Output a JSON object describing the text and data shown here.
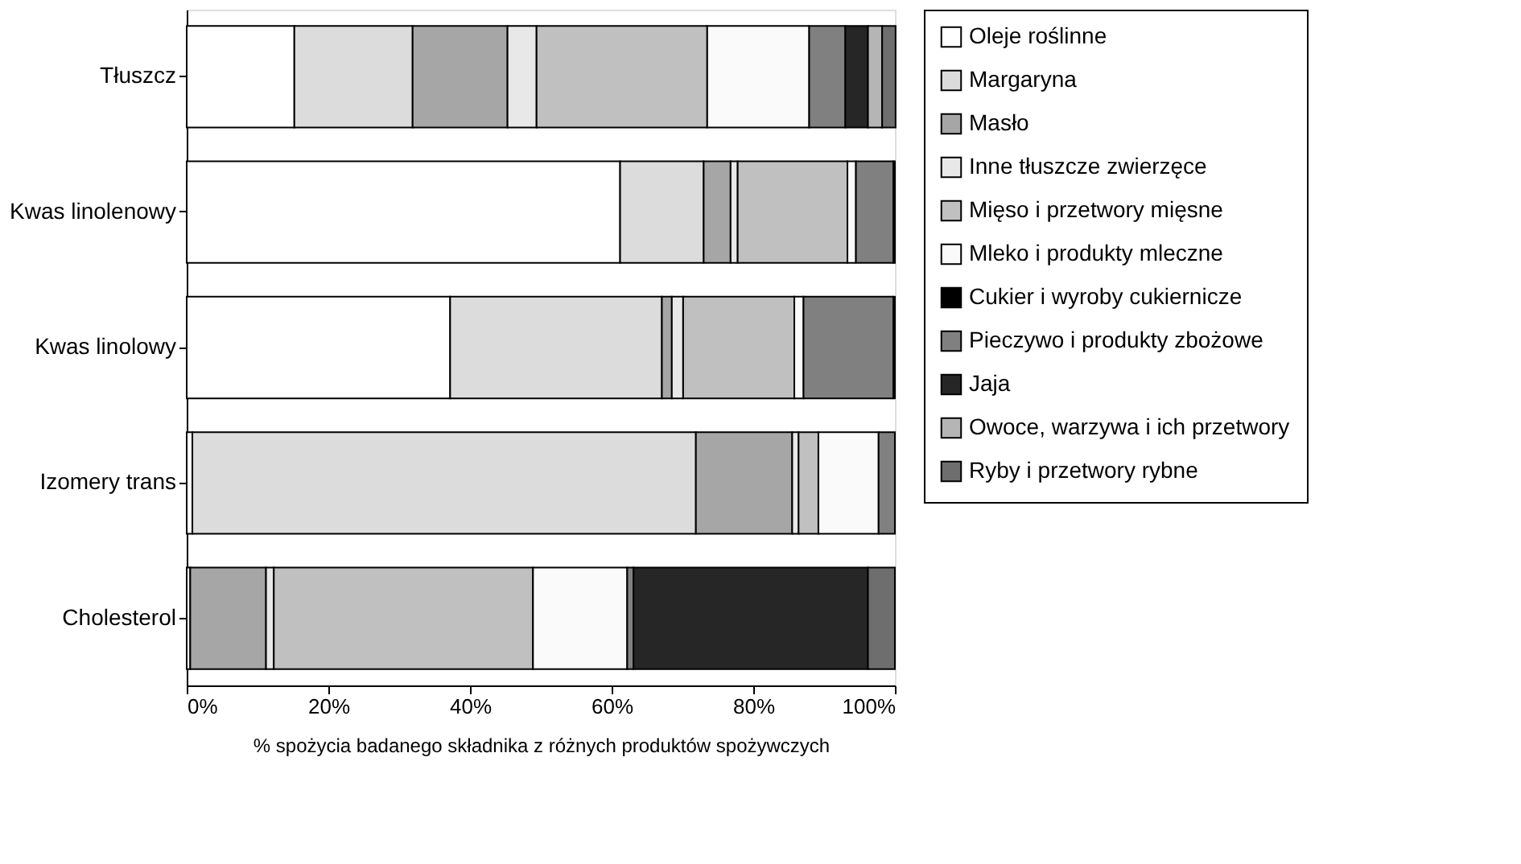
{
  "chart_data": {
    "type": "bar",
    "orientation": "horizontal",
    "stacked": true,
    "categories": [
      "Tłuszcz",
      "Kwas linolenowy",
      "Kwas linolowy",
      "Izomery trans",
      "Cholesterol"
    ],
    "xlabel": "% spożycia badanego składnika z różnych produktów  spożywczych",
    "xlim": [
      0,
      100
    ],
    "xticks": [
      {
        "value": 0,
        "label": "0%"
      },
      {
        "value": 20,
        "label": "20%"
      },
      {
        "value": 40,
        "label": "40%"
      },
      {
        "value": 60,
        "label": "60%"
      },
      {
        "value": 80,
        "label": "80%"
      },
      {
        "value": 100,
        "label": "100%"
      }
    ],
    "grid": false,
    "legend": "right",
    "series": [
      {
        "name": "Oleje roślinne",
        "color": "#ffffff",
        "values": [
          15.2,
          61.2,
          37.2,
          0.8,
          0.5
        ]
      },
      {
        "name": "Margaryna",
        "color": "#dcdcdc",
        "values": [
          16.7,
          11.8,
          29.9,
          71.1,
          null
        ]
      },
      {
        "name": "Masło",
        "color": "#a6a6a6",
        "values": [
          13.4,
          3.8,
          1.4,
          13.6,
          10.7
        ]
      },
      {
        "name": "Inne tłuszcze zwierzęce",
        "color": "#e8e8e8",
        "values": [
          4.1,
          1.0,
          1.6,
          0.9,
          1.1
        ]
      },
      {
        "name": "Mięso i przetwory mięsne",
        "color": "#c0c0c0",
        "values": [
          24.1,
          15.5,
          15.7,
          2.8,
          36.6
        ]
      },
      {
        "name": "Mleko i produkty mleczne",
        "color": "#fafafa",
        "values": [
          14.4,
          1.2,
          1.3,
          8.5,
          13.3
        ]
      },
      {
        "name": "Cukier i wyroby cukiernicze",
        "color": "#000000",
        "values": [
          null,
          null,
          null,
          null,
          null
        ]
      },
      {
        "name": "Pieczywo i produkty zbożowe",
        "color": "#808080",
        "values": [
          5.1,
          5.3,
          12.7,
          2.3,
          0.9
        ]
      },
      {
        "name": "Jaja",
        "color": "#262626",
        "values": [
          3.2,
          0.2,
          0.2,
          null,
          33.1
        ]
      },
      {
        "name": "Owoce, warzywa i ich przetwory",
        "color": "#b5b5b5",
        "values": [
          2.0,
          null,
          null,
          null,
          null
        ]
      },
      {
        "name": "Ryby i przetwory rybne",
        "color": "#6e6e6e",
        "values": [
          1.9,
          null,
          null,
          null,
          3.8
        ]
      }
    ]
  }
}
